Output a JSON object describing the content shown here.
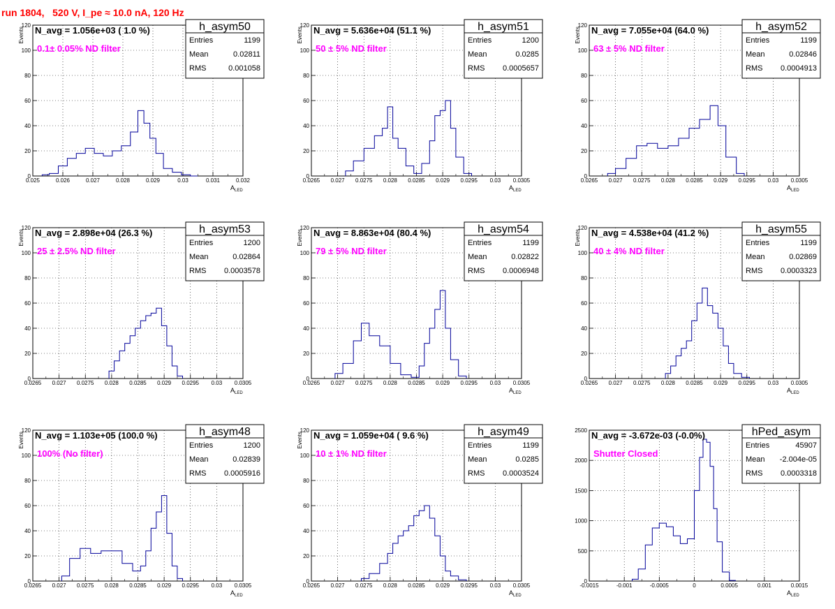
{
  "run_title": "run 1804,   520 V, I_pe ≈ 10.0 nA, 120 Hz",
  "colors": {
    "histogram_line": "#000099",
    "filter_label": "#ff00ff",
    "run_title": "#ff0000"
  },
  "stats_labels": {
    "entries": "Entries",
    "mean": "Mean",
    "rms": "RMS"
  },
  "chart_data": [
    {
      "type": "histogram",
      "name": "h_asym50",
      "navg": "N_avg = 1.056e+03 ( 1.0 %)",
      "filter": "0.1± 0.05% ND filter",
      "entries": "1199",
      "mean": "0.02811",
      "rms": "0.001058",
      "ylabel": "Events",
      "xlabel": "A",
      "xlabel_sub": "LED",
      "xlim": [
        0.025,
        0.032
      ],
      "ylim": [
        0,
        120
      ],
      "xticks": [
        "0.025",
        "0.026",
        "0.027",
        "0.028",
        "0.029",
        "0.03",
        "0.031",
        "0.032"
      ],
      "yticks": [
        "0",
        "20",
        "40",
        "60",
        "80",
        "100",
        "120"
      ],
      "x": [
        0.0254,
        0.0257,
        0.026,
        0.0263,
        0.0266,
        0.0269,
        0.0272,
        0.0275,
        0.0278,
        0.0281,
        0.0284,
        0.0286,
        0.0288,
        0.029,
        0.0292,
        0.0295,
        0.0298,
        0.0301,
        0.0304
      ],
      "values": [
        1,
        2,
        8,
        14,
        18,
        22,
        18,
        16,
        20,
        24,
        35,
        52,
        42,
        30,
        18,
        6,
        3,
        1,
        0
      ]
    },
    {
      "type": "histogram",
      "name": "h_asym51",
      "navg": "N_avg = 5.636e+04 (51.1 %)",
      "filter": "50 ± 5% ND filter",
      "entries": "1200",
      "mean": "0.0285",
      "rms": "0.0005657",
      "ylabel": "Events",
      "xlabel": "A",
      "xlabel_sub": "LED",
      "xlim": [
        0.0265,
        0.0305
      ],
      "ylim": [
        0,
        120
      ],
      "xticks": [
        "0.0265",
        "0.027",
        "0.0275",
        "0.028",
        "0.0285",
        "0.029",
        "0.0295",
        "0.03",
        "0.0305"
      ],
      "yticks": [
        "0",
        "20",
        "40",
        "60",
        "80",
        "100",
        "120"
      ],
      "x": [
        0.0272,
        0.0274,
        0.0276,
        0.0278,
        0.0279,
        0.028,
        0.0281,
        0.0282,
        0.0284,
        0.0285,
        0.0287,
        0.0288,
        0.0289,
        0.029,
        0.0291,
        0.0292,
        0.0293,
        0.0295
      ],
      "values": [
        4,
        12,
        22,
        32,
        38,
        55,
        30,
        22,
        8,
        2,
        10,
        28,
        48,
        52,
        60,
        38,
        15,
        2
      ]
    },
    {
      "type": "histogram",
      "name": "h_asym52",
      "navg": "N_avg = 7.055e+04 (64.0 %)",
      "filter": "63 ± 5% ND filter",
      "entries": "1199",
      "mean": "0.02846",
      "rms": "0.0004913",
      "ylabel": "Events",
      "xlabel": "A",
      "xlabel_sub": "LED",
      "xlim": [
        0.0265,
        0.0305
      ],
      "ylim": [
        0,
        120
      ],
      "xticks": [
        "0.0265",
        "0.027",
        "0.0275",
        "0.028",
        "0.0285",
        "0.029",
        "0.0295",
        "0.03",
        "0.0305"
      ],
      "yticks": [
        "0",
        "20",
        "40",
        "60",
        "80",
        "100",
        "120"
      ],
      "x": [
        0.0269,
        0.0271,
        0.0273,
        0.0275,
        0.0277,
        0.0279,
        0.0281,
        0.0283,
        0.0285,
        0.0287,
        0.0289,
        0.029,
        0.0292,
        0.0294
      ],
      "values": [
        2,
        6,
        14,
        24,
        26,
        22,
        24,
        30,
        38,
        45,
        56,
        40,
        15,
        2
      ]
    },
    {
      "type": "histogram",
      "name": "h_asym53",
      "navg": "N_avg = 2.898e+04 (26.3 %)",
      "filter": "25 ± 2.5% ND filter",
      "entries": "1200",
      "mean": "0.02864",
      "rms": "0.0003578",
      "ylabel": "Events",
      "xlabel": "A",
      "xlabel_sub": "LED",
      "xlim": [
        0.0265,
        0.0305
      ],
      "ylim": [
        0,
        120
      ],
      "xticks": [
        "0.0265",
        "0.027",
        "0.0275",
        "0.028",
        "0.0285",
        "0.029",
        "0.0295",
        "0.03",
        "0.0305"
      ],
      "yticks": [
        "0",
        "20",
        "40",
        "60",
        "80",
        "100",
        "120"
      ],
      "x": [
        0.028,
        0.0281,
        0.0282,
        0.0283,
        0.0284,
        0.0285,
        0.0286,
        0.0287,
        0.0288,
        0.0289,
        0.029,
        0.0291,
        0.0292,
        0.0293
      ],
      "values": [
        6,
        14,
        22,
        28,
        34,
        40,
        46,
        50,
        52,
        56,
        42,
        26,
        10,
        2
      ]
    },
    {
      "type": "histogram",
      "name": "h_asym54",
      "navg": "N_avg = 8.863e+04 (80.4 %)",
      "filter": "79 ± 5% ND filter",
      "entries": "1199",
      "mean": "0.02822",
      "rms": "0.0006948",
      "ylabel": "Events",
      "xlabel": "A",
      "xlabel_sub": "LED",
      "xlim": [
        0.0265,
        0.0305
      ],
      "ylim": [
        0,
        120
      ],
      "xticks": [
        "0.0265",
        "0.027",
        "0.0275",
        "0.028",
        "0.0285",
        "0.029",
        "0.0295",
        "0.03",
        "0.0305"
      ],
      "yticks": [
        "0",
        "20",
        "40",
        "60",
        "80",
        "100",
        "120"
      ],
      "x": [
        0.027,
        0.0272,
        0.0274,
        0.0275,
        0.0277,
        0.0279,
        0.0281,
        0.0283,
        0.0285,
        0.0286,
        0.0287,
        0.0288,
        0.0289,
        0.029,
        0.0291,
        0.0292,
        0.0294
      ],
      "values": [
        4,
        12,
        30,
        44,
        34,
        26,
        12,
        3,
        1,
        10,
        28,
        40,
        55,
        70,
        40,
        15,
        2
      ]
    },
    {
      "type": "histogram",
      "name": "h_asym55",
      "navg": "N_avg = 4.538e+04 (41.2 %)",
      "filter": "40 ± 4% ND filter",
      "entries": "1199",
      "mean": "0.02869",
      "rms": "0.0003323",
      "ylabel": "Events",
      "xlabel": "A",
      "xlabel_sub": "LED",
      "xlim": [
        0.0265,
        0.0305
      ],
      "ylim": [
        0,
        120
      ],
      "xticks": [
        "0.0265",
        "0.027",
        "0.0275",
        "0.028",
        "0.0285",
        "0.029",
        "0.0295",
        "0.03",
        "0.0305"
      ],
      "yticks": [
        "0",
        "20",
        "40",
        "60",
        "80",
        "100",
        "120"
      ],
      "x": [
        0.028,
        0.0281,
        0.0282,
        0.0283,
        0.0284,
        0.0285,
        0.0286,
        0.0287,
        0.0288,
        0.0289,
        0.029,
        0.0291,
        0.0292,
        0.0293,
        0.0295
      ],
      "values": [
        4,
        10,
        18,
        24,
        30,
        46,
        60,
        72,
        58,
        52,
        40,
        26,
        12,
        4,
        1
      ]
    },
    {
      "type": "histogram",
      "name": "h_asym48",
      "navg": "N_avg = 1.103e+05 (100.0 %)",
      "filter": "100% (No filter)",
      "entries": "1200",
      "mean": "0.02839",
      "rms": "0.0005916",
      "ylabel": "Events",
      "xlabel": "A",
      "xlabel_sub": "LED",
      "xlim": [
        0.0265,
        0.0305
      ],
      "ylim": [
        0,
        120
      ],
      "xticks": [
        "0.0265",
        "0.027",
        "0.0275",
        "0.028",
        "0.0285",
        "0.029",
        "0.0295",
        "0.03",
        "0.0305"
      ],
      "yticks": [
        "0",
        "20",
        "40",
        "60",
        "80",
        "100",
        "120"
      ],
      "x": [
        0.0271,
        0.0273,
        0.0275,
        0.0277,
        0.0279,
        0.0281,
        0.0283,
        0.0285,
        0.0286,
        0.0287,
        0.0288,
        0.0289,
        0.029,
        0.0291,
        0.0292,
        0.0293
      ],
      "values": [
        4,
        18,
        26,
        22,
        24,
        24,
        14,
        8,
        12,
        24,
        42,
        55,
        68,
        38,
        12,
        2
      ]
    },
    {
      "type": "histogram",
      "name": "h_asym49",
      "navg": "N_avg = 1.059e+04 ( 9.6 %)",
      "filter": "10 ± 1% ND filter",
      "entries": "1199",
      "mean": "0.0285",
      "rms": "0.0003524",
      "ylabel": "Events",
      "xlabel": "A",
      "xlabel_sub": "LED",
      "xlim": [
        0.0265,
        0.0305
      ],
      "ylim": [
        0,
        120
      ],
      "xticks": [
        "0.0265",
        "0.027",
        "0.0275",
        "0.028",
        "0.0285",
        "0.029",
        "0.0295",
        "0.03",
        "0.0305"
      ],
      "yticks": [
        "0",
        "20",
        "40",
        "60",
        "80",
        "100",
        "120"
      ],
      "x": [
        0.0275,
        0.0277,
        0.0279,
        0.028,
        0.0281,
        0.0282,
        0.0283,
        0.0284,
        0.0285,
        0.0286,
        0.0287,
        0.0288,
        0.0289,
        0.029,
        0.0291,
        0.0292,
        0.0294
      ],
      "values": [
        2,
        6,
        14,
        22,
        30,
        36,
        40,
        44,
        52,
        56,
        60,
        50,
        36,
        20,
        8,
        4,
        1
      ]
    },
    {
      "type": "histogram",
      "name": "hPed_asym",
      "navg": "N_avg = -3.672e-03 (-0.0%)",
      "filter": "Shutter Closed",
      "entries": "45907",
      "mean": "-2.004e-05",
      "rms": "0.0003318",
      "ylabel": "",
      "xlabel": "A",
      "xlabel_sub": "LED",
      "xlim": [
        -0.0015,
        0.0015
      ],
      "ylim": [
        0,
        2500
      ],
      "xticks": [
        "-0.0015",
        "-0.001",
        "-0.0005",
        "0",
        "0.0005",
        "0.001",
        "0.0015"
      ],
      "yticks": [
        "0",
        "500",
        "1000",
        "1500",
        "2000",
        "2500"
      ],
      "x": [
        -0.00085,
        -0.00075,
        -0.00065,
        -0.00055,
        -0.00045,
        -0.00035,
        -0.00025,
        -0.00015,
        -5e-05,
        5e-05,
        0.0001,
        0.00015,
        0.0002,
        0.00025,
        0.0003,
        0.00035,
        0.00045,
        0.00055
      ],
      "values": [
        30,
        200,
        600,
        880,
        960,
        900,
        750,
        620,
        700,
        1500,
        2050,
        2350,
        2300,
        1900,
        1200,
        650,
        150,
        10
      ]
    }
  ]
}
